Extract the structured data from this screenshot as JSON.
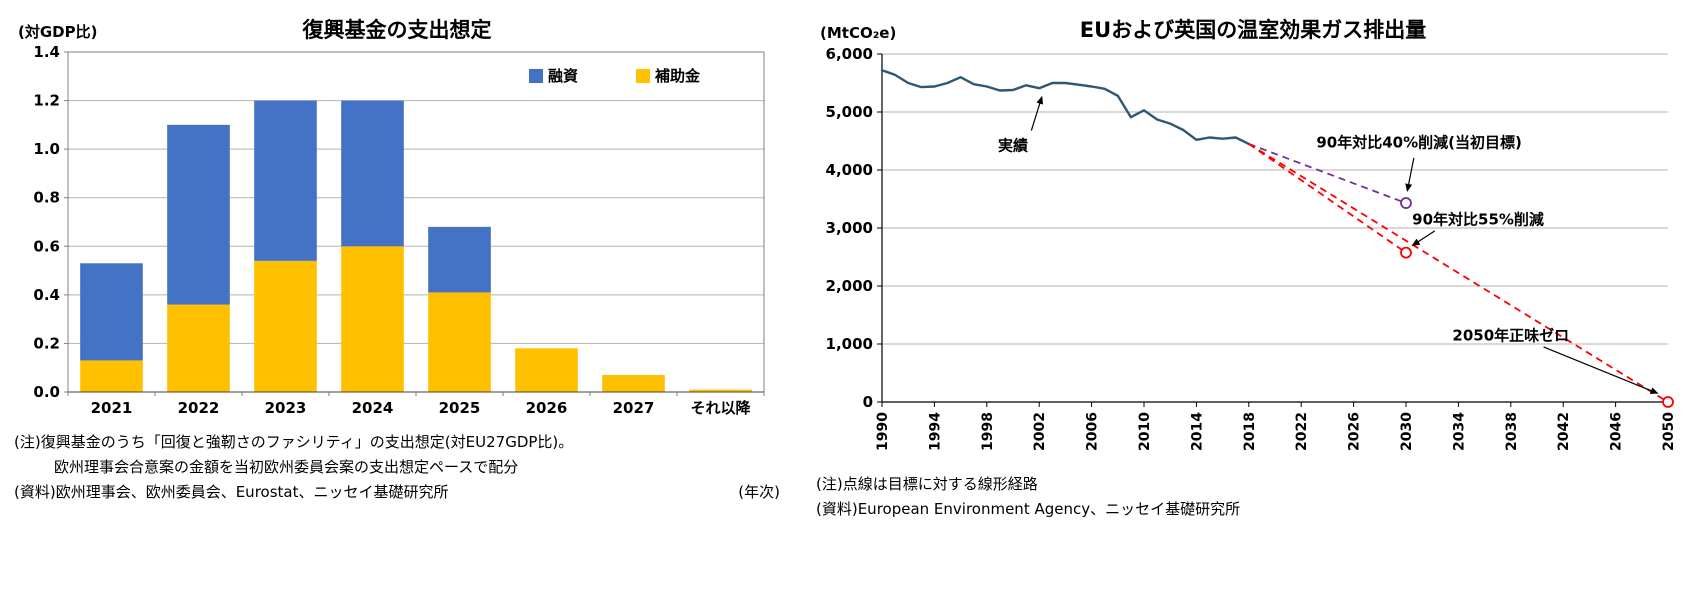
{
  "page": {
    "background": "#ffffff"
  },
  "left_panel": {
    "y_unit": "(対GDP比)",
    "title": "復興基金の支出想定",
    "x_unit": "(年次)",
    "notes": [
      "(注)復興基金のうち「回復と強靭さのファシリティ」の支出想定(対EU27GDP比)。",
      "欧州理事会合意案の金額を当初欧州委員会案の支出想定ペースで配分",
      "(資料)欧州理事会、欧州委員会、Eurostat、ニッセイ基礎研究所"
    ]
  },
  "right_panel": {
    "y_unit": "(MtCO₂e)",
    "title": "EUおよび英国の温室効果ガス排出量",
    "notes": [
      "(注)点線は目標に対する線形経路",
      "(資料)European Environment Agency、ニッセイ基礎研究所"
    ]
  },
  "chart_data": [
    {
      "id": "recovery-fund-spending",
      "type": "bar",
      "stacked": true,
      "title": "復興基金の支出想定",
      "ylabel": "(対GDP比)",
      "xlabel": "(年次)",
      "ylim": [
        0,
        1.4
      ],
      "ytick": 0.2,
      "grid": "horizontal",
      "legend_position": "top-right",
      "categories": [
        "2021",
        "2022",
        "2023",
        "2024",
        "2025",
        "2026",
        "2027",
        "それ以降"
      ],
      "series": [
        {
          "name": "融資",
          "color": "#4472C4",
          "values": [
            0.4,
            0.74,
            0.66,
            0.6,
            0.27,
            0.0,
            0.0,
            0.0
          ]
        },
        {
          "name": "補助金",
          "color": "#FFC000",
          "values": [
            0.13,
            0.36,
            0.54,
            0.6,
            0.41,
            0.18,
            0.07,
            0.01
          ]
        }
      ]
    },
    {
      "id": "eu-uk-ghg-emissions",
      "type": "line",
      "title": "EUおよび英国の温室効果ガス排出量",
      "ylabel": "(MtCO₂e)",
      "ylim": [
        0,
        6000
      ],
      "ytick": 1000,
      "xlim": [
        1990,
        2050
      ],
      "xtick": 4,
      "grid": "horizontal",
      "actual": {
        "name": "実績",
        "color": "#2F5773",
        "years": [
          1990,
          1991,
          1992,
          1993,
          1994,
          1995,
          1996,
          1997,
          1998,
          1999,
          2000,
          2001,
          2002,
          2003,
          2004,
          2005,
          2006,
          2007,
          2008,
          2009,
          2010,
          2011,
          2012,
          2013,
          2014,
          2015,
          2016,
          2017,
          2018
        ],
        "values": [
          5720,
          5640,
          5500,
          5430,
          5440,
          5500,
          5600,
          5480,
          5440,
          5370,
          5380,
          5460,
          5410,
          5500,
          5500,
          5470,
          5440,
          5400,
          5280,
          4910,
          5030,
          4870,
          4800,
          4690,
          4520,
          4560,
          4540,
          4560,
          4450
        ]
      },
      "targets": [
        {
          "name": "90年対比40%削減(当初目標)",
          "color": "#7030A0",
          "from": {
            "year": 2018,
            "value": 4450
          },
          "to": {
            "year": 2030,
            "value": 3430
          },
          "marker": "open-circle"
        },
        {
          "name": "90年対比55%削減",
          "color": "#FF0000",
          "from": {
            "year": 2018,
            "value": 4450
          },
          "to": {
            "year": 2030,
            "value": 2575
          },
          "marker": "open-circle"
        },
        {
          "name": "2050年正味ゼロ",
          "color": "#FF0000",
          "from": {
            "year": 2018,
            "value": 4450
          },
          "to": {
            "year": 2050,
            "value": 0
          },
          "marker": "open-circle"
        }
      ],
      "annotations": [
        {
          "text": "実績",
          "x": 2000,
          "y": 4420,
          "arrow": {
            "x1": 2001.4,
            "y1": 4680,
            "x2": 2002.2,
            "y2": 5260
          }
        },
        {
          "text": "90年対比40%削減(当初目標)",
          "x": 2031,
          "y": 4470,
          "arrow": {
            "x1": 2030.6,
            "y1": 4210,
            "x2": 2030.1,
            "y2": 3640
          }
        },
        {
          "text": "90年対比55%削減",
          "x": 2035.5,
          "y": 3150,
          "arrow": {
            "x1": 2032.2,
            "y1": 2950,
            "x2": 2030.5,
            "y2": 2700
          }
        },
        {
          "text": "2050年正味ゼロ",
          "x": 2038,
          "y": 1150,
          "arrow": {
            "x1": 2040.5,
            "y1": 950,
            "x2": 2049.2,
            "y2": 150
          }
        }
      ]
    }
  ]
}
